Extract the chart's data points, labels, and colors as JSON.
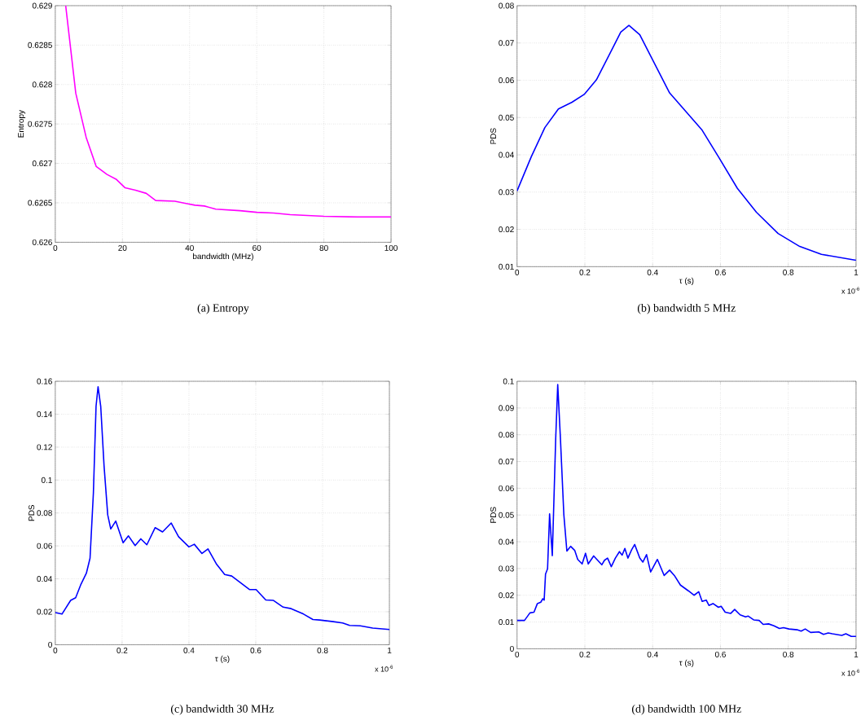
{
  "chart_data": [
    {
      "type": "line",
      "xlabel": "bandwidth (MHz)",
      "ylabel": "Entropy",
      "annotations": [
        "(a) Entropy"
      ],
      "color": "#ff00ff",
      "grid": true,
      "line_style": "solid",
      "xlim": [
        0,
        100
      ],
      "ylim": [
        0.626,
        0.629
      ],
      "xticks": [
        0,
        20,
        40,
        60,
        80,
        100
      ],
      "yticks": [
        0.626,
        0.6265,
        0.627,
        0.6275,
        0.628,
        0.6285,
        0.629
      ],
      "x": [
        3.1,
        6.1,
        9.2,
        12.2,
        15.4,
        18.1,
        20.8,
        23.9,
        27.1,
        29.9,
        35.6,
        39.2,
        41.6,
        44.4,
        47.8,
        55,
        60,
        65,
        70,
        80,
        90,
        100
      ],
      "values": [
        0.629,
        0.62789,
        0.62733,
        0.62696,
        0.62686,
        0.6268,
        0.62669,
        0.62666,
        0.62662,
        0.62653,
        0.62652,
        0.62649,
        0.62647,
        0.62646,
        0.62642,
        0.6264,
        0.62638,
        0.62637,
        0.62635,
        0.62633,
        0.62632,
        0.62632
      ]
    },
    {
      "type": "line",
      "xlabel": "τ (s)",
      "ylabel": "PDS",
      "annotations": [
        "x 10$^{-6}$",
        "(b) bandwidth 5 MHz"
      ],
      "color": "#0000ff",
      "grid": true,
      "line_style": "solid",
      "xlim": [
        0,
        1
      ],
      "ylim": [
        0.01,
        0.08
      ],
      "xticks": [
        0,
        0.2,
        0.4,
        0.6,
        0.8,
        1
      ],
      "yticks": [
        0.01,
        0.02,
        0.03,
        0.04,
        0.05,
        0.06,
        0.07,
        0.08
      ],
      "x": [
        0,
        0.042,
        0.082,
        0.122,
        0.162,
        0.198,
        0.234,
        0.274,
        0.306,
        0.33,
        0.362,
        0.402,
        0.45,
        0.498,
        0.546,
        0.594,
        0.65,
        0.706,
        0.77,
        0.834,
        0.898,
        1
      ],
      "values": [
        0.0303,
        0.0395,
        0.0473,
        0.0523,
        0.0541,
        0.0562,
        0.0601,
        0.0672,
        0.0729,
        0.0747,
        0.0722,
        0.0651,
        0.0566,
        0.0516,
        0.0466,
        0.0395,
        0.031,
        0.0246,
        0.0189,
        0.0154,
        0.0133,
        0.0117
      ]
    },
    {
      "type": "line",
      "xlabel": "τ (s)",
      "ylabel": "PDS",
      "annotations": [
        "x 10$^{-6}$",
        "(c) bandwidth 30 MHz"
      ],
      "color": "#0000ff",
      "grid": true,
      "line_style": "solid",
      "xlim": [
        0,
        1
      ],
      "ylim": [
        0,
        0.16
      ],
      "xticks": [
        0,
        0.2,
        0.4,
        0.6,
        0.8,
        1
      ],
      "yticks": [
        0,
        0.02,
        0.04,
        0.06,
        0.08,
        0.1,
        0.12,
        0.14,
        0.16
      ],
      "x": [
        0,
        0.02,
        0.046,
        0.061,
        0.077,
        0.093,
        0.104,
        0.114,
        0.122,
        0.128,
        0.136,
        0.146,
        0.157,
        0.166,
        0.181,
        0.203,
        0.219,
        0.239,
        0.256,
        0.274,
        0.299,
        0.321,
        0.347,
        0.369,
        0.4,
        0.416,
        0.439,
        0.457,
        0.483,
        0.507,
        0.528,
        0.581,
        0.601,
        0.63,
        0.653,
        0.682,
        0.706,
        0.743,
        0.771,
        0.791,
        0.832,
        0.86,
        0.881,
        0.913,
        0.95,
        1
      ],
      "values": [
        0.0195,
        0.0186,
        0.0269,
        0.0285,
        0.0368,
        0.0434,
        0.0525,
        0.092,
        0.1448,
        0.1567,
        0.1448,
        0.1085,
        0.0788,
        0.0703,
        0.0751,
        0.0619,
        0.0661,
        0.0602,
        0.0643,
        0.0607,
        0.0711,
        0.0685,
        0.0739,
        0.0656,
        0.0594,
        0.061,
        0.0554,
        0.0582,
        0.0488,
        0.0426,
        0.0417,
        0.0335,
        0.0335,
        0.0272,
        0.0269,
        0.0228,
        0.0219,
        0.0186,
        0.0153,
        0.015,
        0.014,
        0.0132,
        0.0117,
        0.0115,
        0.0101,
        0.0092
      ]
    },
    {
      "type": "line",
      "xlabel": "τ (s)",
      "ylabel": "PDS",
      "annotations": [
        "x 10$^{-6}$",
        "(d) bandwidth 100 MHz"
      ],
      "color": "#0000ff",
      "grid": true,
      "line_style": "solid",
      "xlim": [
        0,
        1
      ],
      "ylim": [
        0,
        0.1
      ],
      "xticks": [
        0,
        0.2,
        0.4,
        0.6,
        0.8,
        1
      ],
      "yticks": [
        0,
        0.01,
        0.02,
        0.03,
        0.04,
        0.05,
        0.06,
        0.07,
        0.08,
        0.09,
        0.1
      ],
      "x": [
        0,
        0.022,
        0.038,
        0.05,
        0.06,
        0.07,
        0.076,
        0.08,
        0.084,
        0.09,
        0.096,
        0.104,
        0.114,
        0.12,
        0.128,
        0.138,
        0.147,
        0.158,
        0.17,
        0.179,
        0.192,
        0.202,
        0.21,
        0.226,
        0.25,
        0.258,
        0.267,
        0.278,
        0.29,
        0.302,
        0.31,
        0.318,
        0.327,
        0.338,
        0.347,
        0.362,
        0.371,
        0.382,
        0.394,
        0.414,
        0.434,
        0.45,
        0.464,
        0.482,
        0.506,
        0.522,
        0.536,
        0.546,
        0.558,
        0.566,
        0.578,
        0.594,
        0.602,
        0.614,
        0.63,
        0.642,
        0.658,
        0.674,
        0.682,
        0.698,
        0.714,
        0.726,
        0.742,
        0.758,
        0.774,
        0.786,
        0.802,
        0.826,
        0.838,
        0.85,
        0.866,
        0.89,
        0.904,
        0.918,
        0.93,
        0.958,
        0.97,
        0.986,
        1
      ],
      "values": [
        0.0106,
        0.0106,
        0.0134,
        0.0137,
        0.0169,
        0.0174,
        0.0187,
        0.0182,
        0.0279,
        0.0299,
        0.0504,
        0.0348,
        0.0785,
        0.0988,
        0.0785,
        0.0502,
        0.0365,
        0.0383,
        0.0368,
        0.0334,
        0.0317,
        0.0357,
        0.0317,
        0.0347,
        0.0314,
        0.0331,
        0.0339,
        0.0307,
        0.0339,
        0.0363,
        0.035,
        0.0375,
        0.0339,
        0.037,
        0.039,
        0.0339,
        0.0324,
        0.0352,
        0.0287,
        0.0334,
        0.0274,
        0.0294,
        0.0274,
        0.0238,
        0.0216,
        0.02,
        0.0213,
        0.0177,
        0.0182,
        0.0162,
        0.0169,
        0.0155,
        0.0159,
        0.0137,
        0.0132,
        0.0147,
        0.0127,
        0.0119,
        0.0122,
        0.0108,
        0.0106,
        0.0091,
        0.0093,
        0.0086,
        0.0076,
        0.0079,
        0.0074,
        0.0071,
        0.0066,
        0.0074,
        0.0061,
        0.0063,
        0.0054,
        0.0059,
        0.0056,
        0.005,
        0.0056,
        0.0046,
        0.0046
      ]
    }
  ]
}
